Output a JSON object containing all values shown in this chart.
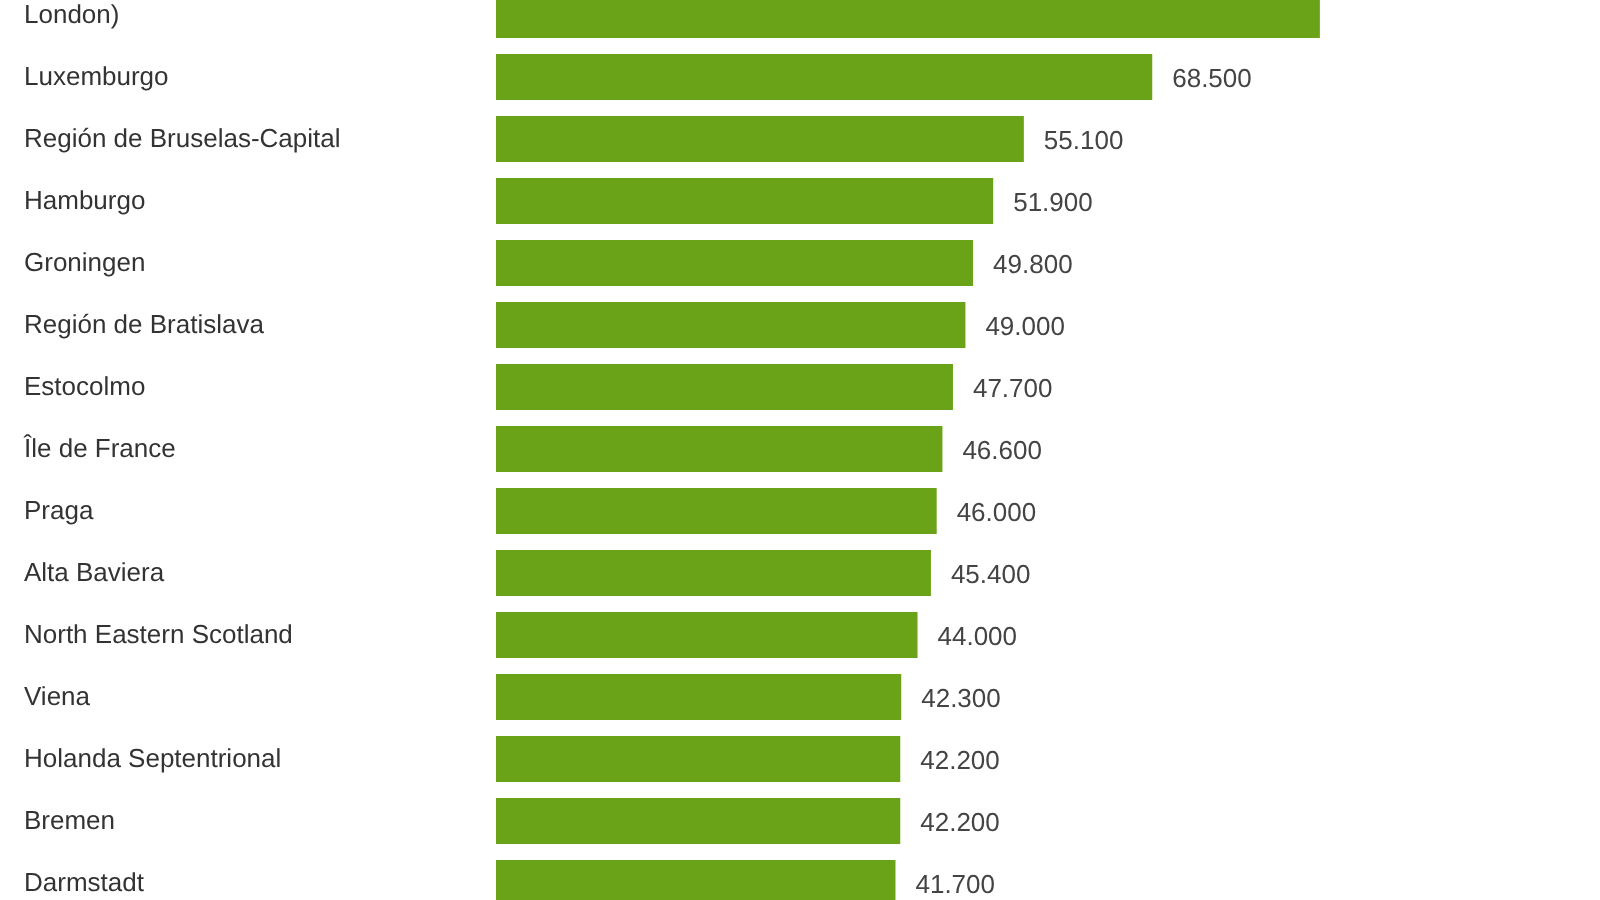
{
  "chart_data": {
    "type": "bar",
    "orientation": "horizontal",
    "categories": [
      "London)",
      "Luxemburgo",
      "Región de Bruselas-Capital",
      "Hamburgo",
      "Groningen",
      "Región de Bratislava",
      "Estocolmo",
      "Île de France",
      "Praga",
      "Alta Baviera",
      "North Eastern Scotland",
      "Viena",
      "Holanda Septentrional",
      "Bremen",
      "Darmstadt"
    ],
    "values": [
      86000,
      68500,
      55100,
      51900,
      49800,
      49000,
      47700,
      46600,
      46000,
      45400,
      44000,
      42300,
      42200,
      42200,
      41700
    ],
    "value_labels": [
      null,
      "68.500",
      "55.100",
      "51.900",
      "49.800",
      "49.000",
      "47.700",
      "46.600",
      "46.000",
      "45.400",
      "44.000",
      "42.300",
      "42.200",
      "42.200",
      "41.700"
    ],
    "color": "#6aa318"
  }
}
